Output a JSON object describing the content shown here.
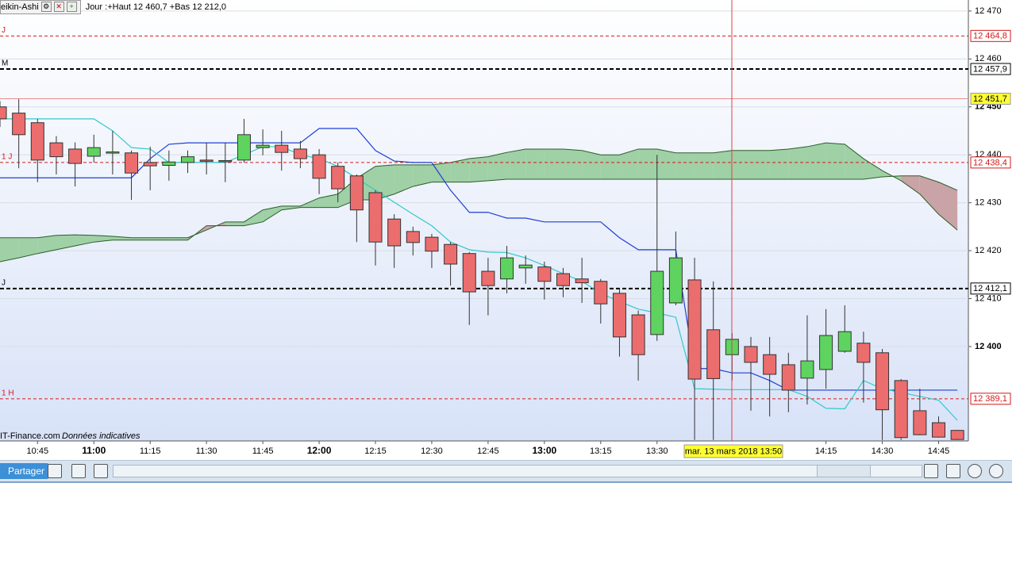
{
  "header": {
    "indicator": "eikin-Ashi",
    "info": "Jour :+Haut 12 460,7 +Bas 12 212,0"
  },
  "watermark": {
    "source": "IT-Finance.com",
    "note": "Données indicatives"
  },
  "crosshair": {
    "label": "mar. 13 mars 2018 13:50"
  },
  "toolbar": {
    "share": "Partager"
  },
  "chart_data": {
    "type": "candlestick",
    "ylim": [
      12380.3,
      12472.3
    ],
    "yticks": [
      {
        "value": 12470,
        "label": "12 470"
      },
      {
        "value": 12460,
        "label": "12 460"
      },
      {
        "value": 12450,
        "label": "12 450",
        "bold": true
      },
      {
        "value": 12440,
        "label": "12 440"
      },
      {
        "value": 12430,
        "label": "12 430"
      },
      {
        "value": 12420,
        "label": "12 420"
      },
      {
        "value": 12410,
        "label": "12 410"
      },
      {
        "value": 12400,
        "label": "12 400",
        "bold": true
      }
    ],
    "grid": true,
    "categories": [
      null,
      null,
      "10:45",
      null,
      null,
      "11:00",
      null,
      null,
      "11:15",
      null,
      null,
      "11:30",
      null,
      null,
      "11:45",
      null,
      null,
      "12:00",
      null,
      null,
      "12:15",
      null,
      null,
      "12:30",
      null,
      null,
      "12:45",
      null,
      null,
      "13:00",
      null,
      null,
      "13:15",
      null,
      null,
      "13:30",
      null,
      null,
      null,
      null,
      null,
      null,
      null,
      null,
      "14:15",
      null,
      null,
      "14:30",
      null,
      null,
      "14:45",
      null
    ],
    "up_color": "#5fd35f",
    "down_color": "#ec6d6d",
    "candles": [
      [
        12450.0,
        12451.2,
        12445.8,
        12447.5
      ],
      [
        12448.7,
        12451.6,
        12437.2,
        12444.2
      ],
      [
        12446.7,
        12447.5,
        12434.3,
        12438.9
      ],
      [
        12442.5,
        12443.9,
        12435.9,
        12439.6
      ],
      [
        12441.2,
        12442.6,
        12433.4,
        12438.2
      ],
      [
        12439.7,
        12444.2,
        12438.4,
        12441.5
      ],
      [
        12440.5,
        12445.0,
        12435.9,
        12440.6
      ],
      [
        12440.4,
        12440.9,
        12430.6,
        12436.2
      ],
      [
        12438.4,
        12441.7,
        12432.6,
        12437.7
      ],
      [
        12437.8,
        12440.9,
        12434.6,
        12438.5
      ],
      [
        12438.4,
        12440.9,
        12436.2,
        12439.6
      ],
      [
        12438.9,
        12442.5,
        12435.9,
        12438.7
      ],
      [
        12438.7,
        12442.5,
        12434.3,
        12438.8
      ],
      [
        12438.9,
        12447.5,
        12438.4,
        12444.2
      ],
      [
        12441.5,
        12445.3,
        12439.9,
        12442.0
      ],
      [
        12442.0,
        12445.0,
        12436.7,
        12440.5
      ],
      [
        12441.2,
        12442.9,
        12437.2,
        12439.2
      ],
      [
        12440.0,
        12441.2,
        12431.8,
        12435.1
      ],
      [
        12437.6,
        12438.4,
        12430.1,
        12432.9
      ],
      [
        12435.6,
        12435.9,
        12421.8,
        12428.5
      ],
      [
        12432.1,
        12432.6,
        12416.9,
        12421.8
      ],
      [
        12426.6,
        12427.6,
        12416.4,
        12421.0
      ],
      [
        12424.0,
        12425.0,
        12419.0,
        12421.7
      ],
      [
        12422.8,
        12423.5,
        12416.4,
        12419.9
      ],
      [
        12421.3,
        12421.8,
        12412.7,
        12417.2
      ],
      [
        12419.4,
        12419.7,
        12404.5,
        12411.4
      ],
      [
        12415.7,
        12418.5,
        12406.5,
        12412.7
      ],
      [
        12414.1,
        12421.0,
        12411.1,
        12418.5
      ],
      [
        12416.4,
        12419.0,
        12413.1,
        12417.0
      ],
      [
        12416.6,
        12417.7,
        12409.8,
        12413.6
      ],
      [
        12415.2,
        12416.4,
        12410.3,
        12412.7
      ],
      [
        12414.1,
        12418.5,
        12409.1,
        12413.3
      ],
      [
        12413.6,
        12414.1,
        12404.8,
        12408.9
      ],
      [
        12411.1,
        12411.9,
        12397.9,
        12402.0
      ],
      [
        12406.6,
        12407.5,
        12392.9,
        12398.3
      ],
      [
        12402.5,
        12440.0,
        12401.2,
        12415.7
      ],
      [
        12409.1,
        12424.0,
        12408.6,
        12418.5
      ],
      [
        12413.9,
        12418.5,
        12380.5,
        12393.2
      ],
      [
        12403.5,
        12413.6,
        12380.5,
        12393.3
      ],
      [
        12398.3,
        12402.8,
        12392.9,
        12401.5
      ],
      [
        12400.0,
        12402.0,
        12386.6,
        12396.7
      ],
      [
        12398.3,
        12402.0,
        12385.4,
        12394.2
      ],
      [
        12396.2,
        12398.7,
        12386.3,
        12390.9
      ],
      [
        12393.4,
        12406.5,
        12387.9,
        12397.0
      ],
      [
        12395.2,
        12407.8,
        12391.2,
        12402.3
      ],
      [
        12399.0,
        12408.6,
        12398.7,
        12403.1
      ],
      [
        12400.7,
        12403.1,
        12388.3,
        12396.7
      ],
      [
        12398.7,
        12399.5,
        12380.5,
        12386.8
      ],
      [
        12392.9,
        12393.2,
        12380.5,
        12381.0
      ],
      [
        12386.6,
        12391.2,
        12381.5,
        12381.6
      ],
      [
        12384.1,
        12385.4,
        12381.0,
        12381.1
      ],
      [
        12382.5,
        12382.6,
        12380.5,
        12380.6
      ]
    ],
    "series": [
      {
        "color": "#1f3fd6",
        "values": [
          12435.2,
          12435.2,
          12435.2,
          12435.2,
          12435.2,
          12435.2,
          12435.2,
          12435.2,
          12439.2,
          12442.2,
          12442.5,
          12442.5,
          12442.5,
          12442.5,
          12442.5,
          12442.5,
          12442.5,
          12445.5,
          12445.5,
          12445.5,
          12440.9,
          12438.7,
          12438.4,
          12438.4,
          12432.6,
          12428.0,
          12428.0,
          12426.8,
          12426.8,
          12426.0,
          12426.0,
          12426.0,
          12426.0,
          12422.7,
          12420.2,
          12420.2,
          12420.2,
          12395.4,
          12395.4,
          12394.5,
          12394.5,
          12392.9,
          12390.9,
          12390.9,
          12390.9,
          12390.9,
          12390.9,
          12390.9,
          12390.9,
          12390.9,
          12390.9,
          12390.9
        ]
      },
      {
        "color": "#33c9c9",
        "values": [
          12447.5,
          12447.5,
          12447.5,
          12447.5,
          12447.5,
          12447.5,
          12445.0,
          12441.5,
          12441.2,
          12438.4,
          12438.4,
          12438.4,
          12438.4,
          12440.0,
          12441.7,
          12441.7,
          12440.0,
          12439.2,
          12437.6,
          12435.1,
          12432.6,
          12430.1,
          12427.6,
          12425.2,
          12421.8,
          12420.2,
          12419.7,
          12419.6,
          12418.5,
          12416.9,
          12415.2,
          12413.6,
          12411.1,
          12409.4,
          12407.8,
          12407.0,
          12406.1,
          12391.2,
          12391.1,
          12391.0,
          12391.0,
          12391.0,
          12391.0,
          12389.6,
          12387.1,
          12387.0,
          12392.9,
          12391.2,
          12390.4,
          12389.6,
          12388.8,
          12384.6
        ]
      }
    ],
    "cloud": {
      "up_color": "#9fd0a6",
      "down_color": "#c9a3a6",
      "span_a": [
        12422.7,
        12422.7,
        12422.7,
        12423.2,
        12423.3,
        12423.2,
        12423.0,
        12422.7,
        12422.7,
        12422.7,
        12422.7,
        12424.3,
        12426.0,
        12426.0,
        12428.5,
        12429.3,
        12429.3,
        12431.0,
        12431.8,
        12435.1,
        12437.6,
        12437.9,
        12437.9,
        12437.9,
        12438.4,
        12439.2,
        12439.6,
        12440.5,
        12441.2,
        12441.2,
        12441.2,
        12440.9,
        12440.0,
        12440.0,
        12441.2,
        12441.2,
        12440.4,
        12440.4,
        12440.4,
        12440.9,
        12440.9,
        12440.9,
        12441.2,
        12441.7,
        12442.5,
        12442.2,
        12439.2,
        12436.7,
        12434.6,
        12431.8,
        12427.6,
        12424.3
      ],
      "span_b": [
        12417.7,
        12418.5,
        12419.4,
        12420.2,
        12421.0,
        12421.8,
        12422.2,
        12422.2,
        12422.2,
        12422.2,
        12422.2,
        12425.2,
        12425.2,
        12425.2,
        12426.0,
        12428.5,
        12429.0,
        12429.0,
        12429.0,
        12430.6,
        12430.6,
        12431.8,
        12433.4,
        12434.3,
        12434.3,
        12434.3,
        12434.6,
        12434.9,
        12434.9,
        12434.9,
        12434.9,
        12434.9,
        12434.9,
        12434.9,
        12434.9,
        12434.9,
        12434.9,
        12434.9,
        12434.9,
        12434.9,
        12434.9,
        12434.9,
        12434.9,
        12434.9,
        12434.9,
        12434.9,
        12434.9,
        12435.4,
        12435.6,
        12435.6,
        12434.3,
        12432.6
      ]
    },
    "levels": [
      {
        "value": 12464.8,
        "label": "12 464,8",
        "tag": "J",
        "color": "#d21a1a",
        "style": "dashed"
      },
      {
        "value": 12457.9,
        "label": "12 457,9",
        "tag": "M",
        "color": "#000000",
        "style": "bold-dashed"
      },
      {
        "value": 12451.7,
        "label": "12 451,7",
        "color": "#e88a8a",
        "style": "solid",
        "label_bg": "#ffff33"
      },
      {
        "value": 12438.4,
        "label": "12 438,4",
        "tag": "1 J",
        "color": "#d21a1a",
        "style": "dashed"
      },
      {
        "value": 12412.1,
        "label": "12 412,1",
        "tag": "J",
        "color": "#000000",
        "style": "bold-dashed"
      },
      {
        "value": 12389.1,
        "label": "12 389,1",
        "tag": "1 H",
        "color": "#d21a1a",
        "style": "dashed"
      }
    ]
  }
}
